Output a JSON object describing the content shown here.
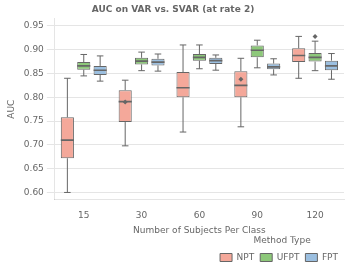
{
  "chart_data": {
    "type": "box",
    "title": "AUC on VAR vs. SVAR (at rate 2)",
    "xlabel": "Number of Subjects Per Class",
    "ylabel": "AUC",
    "categories": [
      "15",
      "30",
      "60",
      "90",
      "120"
    ],
    "series": [
      {
        "name": "NPT",
        "color": "#f4a89a",
        "values": [
          {
            "whislo": 0.6,
            "q1": 0.672,
            "med": 0.71,
            "q3": 0.758,
            "whishi": 0.84,
            "fliers": []
          },
          {
            "whislo": 0.698,
            "q1": 0.748,
            "med": 0.791,
            "q3": 0.815,
            "whishi": 0.836,
            "fliers": [
              0.79
            ]
          },
          {
            "whislo": 0.727,
            "q1": 0.8,
            "med": 0.82,
            "q3": 0.853,
            "whishi": 0.91,
            "fliers": []
          },
          {
            "whislo": 0.738,
            "q1": 0.8,
            "med": 0.825,
            "q3": 0.855,
            "whishi": 0.882,
            "fliers": [
              0.838
            ]
          },
          {
            "whislo": 0.84,
            "q1": 0.874,
            "med": 0.888,
            "q3": 0.903,
            "whishi": 0.928,
            "fliers": []
          }
        ]
      },
      {
        "name": "UFPT",
        "color": "#8dc87a",
        "values": [
          {
            "whislo": 0.845,
            "q1": 0.858,
            "med": 0.866,
            "q3": 0.874,
            "whishi": 0.89,
            "fliers": []
          },
          {
            "whislo": 0.856,
            "q1": 0.869,
            "med": 0.876,
            "q3": 0.883,
            "whishi": 0.895,
            "fliers": []
          },
          {
            "whislo": 0.86,
            "q1": 0.877,
            "med": 0.884,
            "q3": 0.891,
            "whishi": 0.91,
            "fliers": []
          },
          {
            "whislo": 0.862,
            "q1": 0.884,
            "med": 0.899,
            "q3": 0.909,
            "whishi": 0.92,
            "fliers": []
          },
          {
            "whislo": 0.856,
            "q1": 0.875,
            "med": 0.884,
            "q3": 0.893,
            "whishi": 0.918,
            "fliers": [
              0.928
            ]
          }
        ]
      },
      {
        "name": "FPT",
        "color": "#9bbfe0",
        "values": [
          {
            "whislo": 0.834,
            "q1": 0.847,
            "med": 0.857,
            "q3": 0.866,
            "whishi": 0.887,
            "fliers": []
          },
          {
            "whislo": 0.855,
            "q1": 0.867,
            "med": 0.874,
            "q3": 0.881,
            "whishi": 0.891,
            "fliers": []
          },
          {
            "whislo": 0.857,
            "q1": 0.87,
            "med": 0.877,
            "q3": 0.883,
            "whishi": 0.889,
            "fliers": []
          },
          {
            "whislo": 0.847,
            "q1": 0.859,
            "med": 0.864,
            "q3": 0.871,
            "whishi": 0.881,
            "fliers": []
          },
          {
            "whislo": 0.838,
            "q1": 0.857,
            "med": 0.866,
            "q3": 0.877,
            "whishi": 0.892,
            "fliers": []
          }
        ]
      }
    ],
    "ylim": [
      0.585,
      0.965
    ],
    "yticks": [
      {
        "value": 0.6,
        "label": "0.60"
      },
      0.65,
      {
        "value": 0.7,
        "label": "0.70"
      },
      0.75,
      {
        "value": 0.8,
        "label": "0.80"
      },
      0.85,
      {
        "value": 0.9,
        "label": "0.90"
      },
      0.95
    ],
    "grid": true,
    "legend": "lower right",
    "legend_title": "Method Type"
  }
}
